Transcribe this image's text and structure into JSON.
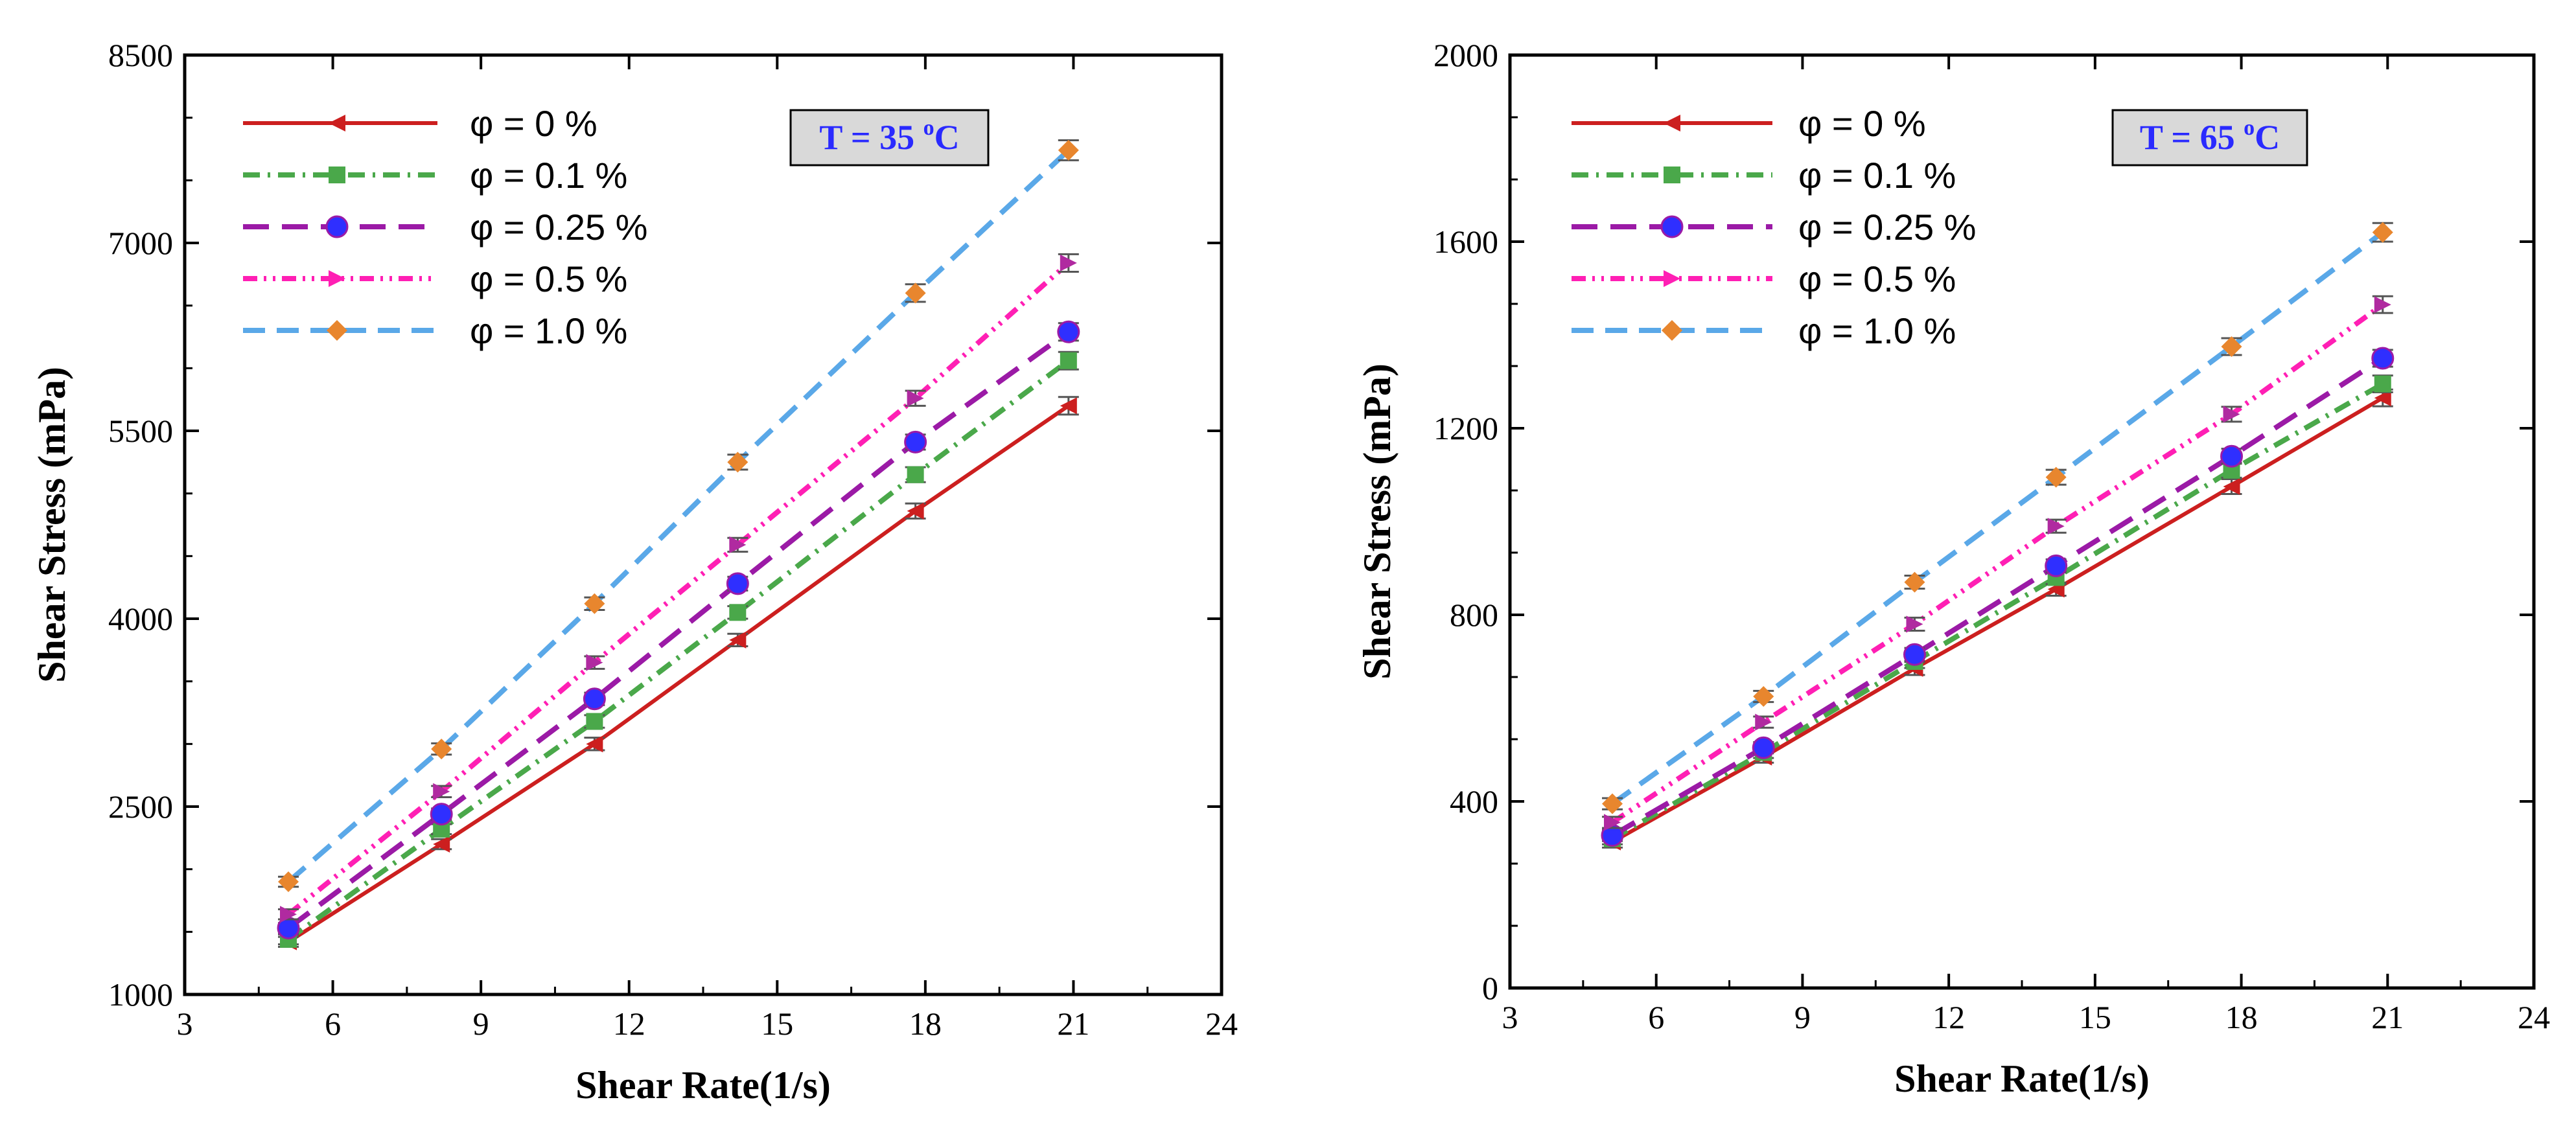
{
  "chart_data": [
    {
      "type": "line",
      "title": "",
      "annotation": {
        "prefix": "T = 35 ",
        "sup": "o",
        "suffix": "C"
      },
      "xlabel": "Shear Rate(1/s)",
      "ylabel": "Shear Stress (mPa)",
      "xlim": [
        3,
        24
      ],
      "ylim": [
        1000,
        8500
      ],
      "xticks": [
        "3",
        "6",
        "9",
        "12",
        "15",
        "18",
        "21",
        "24"
      ],
      "yticks": [
        "1000",
        "2500",
        "4000",
        "5500",
        "7000",
        "8500"
      ],
      "x": [
        5.1,
        8.2,
        11.3,
        14.2,
        17.8,
        20.9
      ],
      "legend_position": "top-left",
      "series": [
        {
          "name": "φ = 0 %",
          "color": "#cc1f1f",
          "dash": "solid",
          "marker": "triangle-left",
          "values": [
            1420,
            2200,
            3000,
            3830,
            4860,
            5700
          ],
          "error": [
            40,
            40,
            50,
            50,
            60,
            70
          ]
        },
        {
          "name": "φ = 0.1 %",
          "color": "#4aa84a",
          "dash": "dashdot",
          "marker": "square",
          "values": [
            1440,
            2320,
            3180,
            4050,
            5150,
            6060
          ],
          "error": [
            40,
            40,
            50,
            50,
            60,
            70
          ]
        },
        {
          "name": "φ = 0.25 %",
          "color": "#9b1aa6",
          "dash": "longdash",
          "marker": "circle",
          "values": [
            1530,
            2440,
            3360,
            4280,
            5410,
            6290
          ],
          "error": [
            40,
            45,
            50,
            55,
            60,
            70
          ]
        },
        {
          "name": "φ = 0.5 %",
          "color": "#ff1fb4",
          "dash": "dashdotdot",
          "marker": "triangle-right",
          "values": [
            1640,
            2620,
            3650,
            4590,
            5760,
            6840
          ],
          "error": [
            40,
            45,
            50,
            55,
            60,
            70
          ]
        },
        {
          "name": "φ = 1.0 %",
          "color": "#5aa8e8",
          "dash": "dash",
          "marker": "diamond",
          "values": [
            1900,
            2960,
            4120,
            5250,
            6600,
            7740
          ],
          "error": [
            40,
            45,
            50,
            60,
            70,
            80
          ]
        }
      ]
    },
    {
      "type": "line",
      "title": "",
      "annotation": {
        "prefix": "T = 65 ",
        "sup": "o",
        "suffix": "C"
      },
      "xlabel": "Shear Rate(1/s)",
      "ylabel": "Shear Stress (mPa)",
      "xlim": [
        3,
        24
      ],
      "ylim": [
        0,
        2000
      ],
      "xticks": [
        "3",
        "6",
        "9",
        "12",
        "15",
        "18",
        "21",
        "24"
      ],
      "yticks": [
        "0",
        "400",
        "800",
        "1200",
        "1600",
        "2000"
      ],
      "x": [
        5.1,
        8.2,
        11.3,
        14.2,
        17.8,
        20.9
      ],
      "legend_position": "top-left",
      "series": [
        {
          "name": "φ = 0 %",
          "color": "#cc1f1f",
          "dash": "solid",
          "marker": "triangle-left",
          "values": [
            313,
            495,
            685,
            855,
            1075,
            1265
          ],
          "error": [
            12,
            12,
            14,
            14,
            16,
            18
          ]
        },
        {
          "name": "φ = 0.1 %",
          "color": "#4aa84a",
          "dash": "dashdot",
          "marker": "square",
          "values": [
            320,
            505,
            700,
            880,
            1110,
            1295
          ],
          "error": [
            12,
            12,
            14,
            14,
            16,
            18
          ]
        },
        {
          "name": "φ = 0.25 %",
          "color": "#9b1aa6",
          "dash": "longdash",
          "marker": "circle",
          "values": [
            327,
            515,
            715,
            905,
            1140,
            1350
          ],
          "error": [
            12,
            12,
            14,
            14,
            16,
            18
          ]
        },
        {
          "name": "φ = 0.5 %",
          "color": "#ff1fb4",
          "dash": "dashdotdot",
          "marker": "triangle-right",
          "values": [
            355,
            570,
            780,
            990,
            1230,
            1465
          ],
          "error": [
            12,
            12,
            14,
            14,
            16,
            18
          ]
        },
        {
          "name": "φ = 1.0 %",
          "color": "#5aa8e8",
          "dash": "dash",
          "marker": "diamond",
          "values": [
            395,
            625,
            870,
            1095,
            1375,
            1620
          ],
          "error": [
            12,
            12,
            14,
            16,
            18,
            20
          ]
        }
      ]
    }
  ]
}
